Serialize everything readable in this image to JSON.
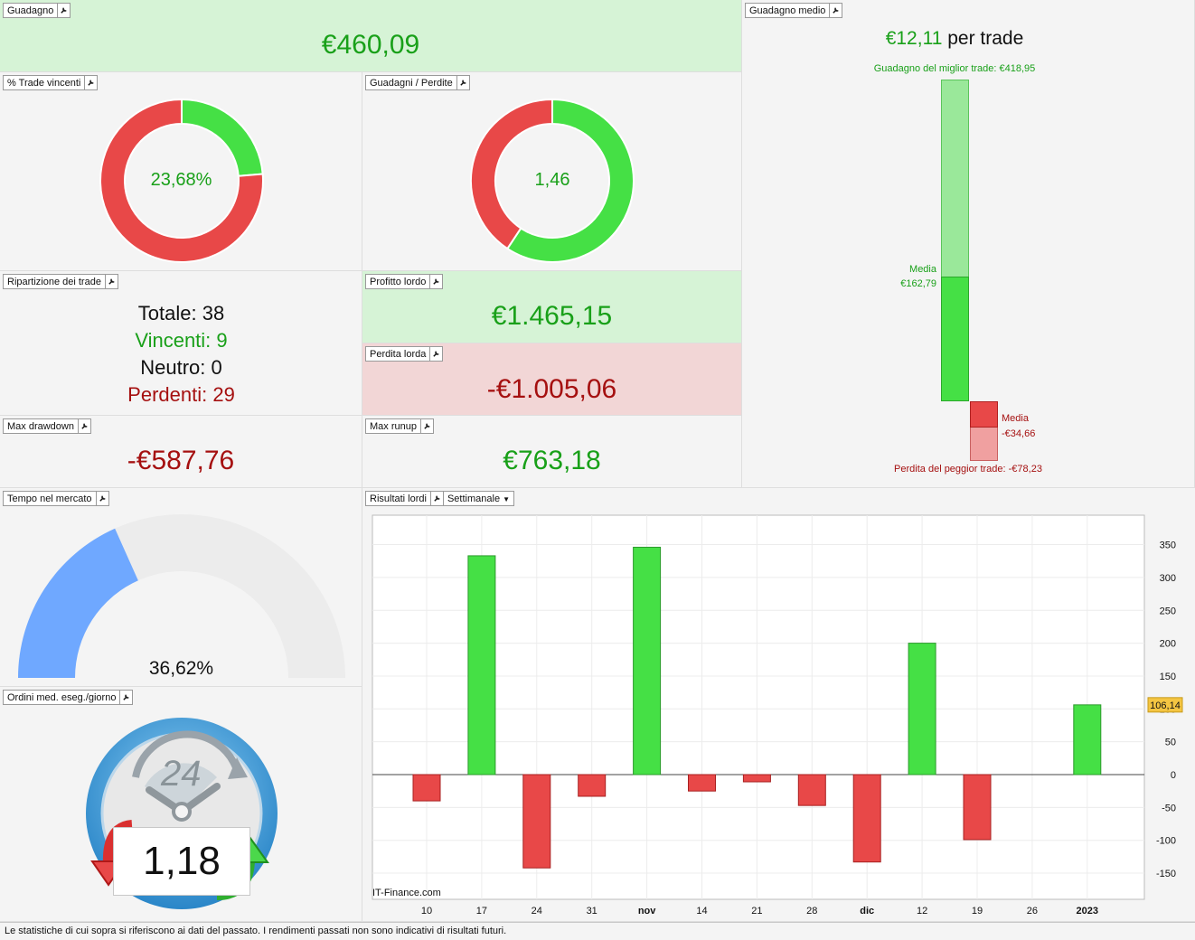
{
  "guadagno": {
    "title": "Guadagno",
    "value": "€460,09"
  },
  "trade_vincenti": {
    "title": "% Trade vincenti",
    "value": "23,68%",
    "fraction": 0.2368
  },
  "guadagni_perdite": {
    "title": "Guadagni / Perdite",
    "value": "1,46",
    "gain_fraction": 0.593
  },
  "ripartizione": {
    "title": "Ripartizione dei trade",
    "totale_label": "Totale:",
    "totale": "38",
    "vincenti_label": "Vincenti:",
    "vincenti": "9",
    "neutro_label": "Neutro:",
    "neutro": "0",
    "perdenti_label": "Perdenti:",
    "perdenti": "29"
  },
  "profitto_lordo": {
    "title": "Profitto lordo",
    "value": "€1.465,15"
  },
  "perdita_lorda": {
    "title": "Perdita lorda",
    "value": "-€1.005,06"
  },
  "max_drawdown": {
    "title": "Max drawdown",
    "value": "-€587,76"
  },
  "max_runup": {
    "title": "Max runup",
    "value": "€763,18"
  },
  "guadagno_medio": {
    "title": "Guadagno medio",
    "value": "€12,11",
    "suffix": "per trade",
    "best_label": "Guadagno del miglior trade: €418,95",
    "best": 418.95,
    "avg_gain_label": "Media",
    "avg_gain_value": "€162,79",
    "avg_gain": 162.79,
    "avg_loss_label": "Media",
    "avg_loss_value": "-€34,66",
    "avg_loss": 34.66,
    "worst_label": "Perdita del peggior trade: -€78,23",
    "worst": 78.23
  },
  "tempo_mercato": {
    "title": "Tempo nel mercato",
    "value": "36,62%",
    "fraction": 0.3662
  },
  "ordini": {
    "title": "Ordini med. eseg./giorno",
    "value": "1,18",
    "clock_label": "24"
  },
  "risultati": {
    "title": "Risultati lordi",
    "period": "Settimanale",
    "watermark": "IT-Finance.com"
  },
  "chart_data": {
    "type": "bar",
    "categories": [
      "10",
      "17",
      "24",
      "31",
      "nov",
      "14",
      "21",
      "28",
      "dic",
      "12",
      "19",
      "26",
      "2023"
    ],
    "bold_categories": [
      "nov",
      "dic",
      "2023"
    ],
    "values": [
      -40,
      333,
      -142,
      -33,
      346,
      -25,
      -11,
      -47,
      -133,
      200,
      -99,
      0,
      106.14
    ],
    "yticks": [
      350,
      300,
      250,
      200,
      150,
      100,
      50,
      0,
      -50,
      -100,
      -150
    ],
    "ylim": [
      -150,
      350
    ],
    "last_value_label": "106,14",
    "positive_color": "#45e045",
    "negative_color": "#e84848"
  },
  "footer": {
    "text": "Le statistiche di cui sopra si riferiscono ai dati del passato. I rendimenti passati non sono indicativi di risultati futuri."
  }
}
